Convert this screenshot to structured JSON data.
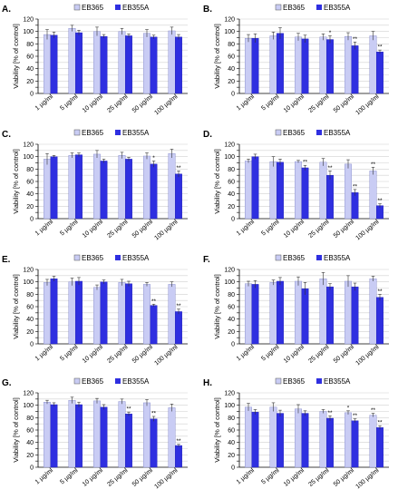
{
  "legend": {
    "series1": "EB365",
    "series2": "EB355A"
  },
  "colors": {
    "series1": "#c9ccf4",
    "series2": "#2f2fe0",
    "axis": "#000000",
    "grid": "#d0d0d0"
  },
  "chart_data": [
    {
      "type": "bar",
      "panel_label": "A.",
      "ylabel": "Viability [% of control]",
      "ylim": [
        0,
        120
      ],
      "yticks": [
        0,
        10,
        20,
        30,
        40,
        50,
        60,
        70,
        80,
        90,
        100,
        110,
        120
      ],
      "categories": [
        "1 µg/ml",
        "5 µg/ml",
        "10 µg/ml",
        "25 µg/ml",
        "50 µg/ml",
        "100 µg/ml"
      ],
      "series": [
        {
          "name": "EB365",
          "values": [
            95,
            105,
            100,
            100,
            97,
            101
          ],
          "errors": [
            8,
            5,
            7,
            5,
            6,
            6
          ],
          "sig": [
            "",
            "",
            "",
            "",
            "",
            ""
          ]
        },
        {
          "name": "EB355A",
          "values": [
            94,
            98,
            92,
            93,
            91,
            91
          ],
          "errors": [
            5,
            4,
            3,
            3,
            3,
            4
          ],
          "sig": [
            "",
            "",
            "",
            "",
            "",
            ""
          ]
        }
      ]
    },
    {
      "type": "bar",
      "panel_label": "B.",
      "ylabel": "Viability [% of control]",
      "ylim": [
        0,
        120
      ],
      "yticks": [
        0,
        10,
        20,
        30,
        40,
        50,
        60,
        70,
        80,
        90,
        100,
        110,
        120
      ],
      "categories": [
        "1 µg/ml",
        "5 µg/ml",
        "10 µg/ml",
        "25 µg/ml",
        "50 µg/ml",
        "100 µg/ml"
      ],
      "series": [
        {
          "name": "EB365",
          "values": [
            89,
            93,
            91,
            91,
            92,
            93
          ],
          "errors": [
            6,
            6,
            6,
            5,
            6,
            7
          ],
          "sig": [
            "",
            "",
            "",
            "",
            "",
            ""
          ]
        },
        {
          "name": "EB355A",
          "values": [
            89,
            97,
            88,
            87,
            77,
            67
          ],
          "errors": [
            7,
            9,
            6,
            6,
            6,
            3
          ],
          "sig": [
            "",
            "",
            "",
            "*",
            "**",
            "**"
          ]
        }
      ]
    },
    {
      "type": "bar",
      "panel_label": "C.",
      "ylabel": "Viability [% of control]",
      "ylim": [
        0,
        120
      ],
      "yticks": [
        0,
        10,
        20,
        30,
        40,
        50,
        60,
        70,
        80,
        90,
        100,
        110,
        120
      ],
      "categories": [
        "1 µg/ml",
        "5 µg/ml",
        "10 µg/ml",
        "25 µg/ml",
        "50 µg/ml",
        "100 µg/ml"
      ],
      "series": [
        {
          "name": "EB365",
          "values": [
            96,
            102,
            104,
            102,
            101,
            105
          ],
          "errors": [
            9,
            4,
            6,
            5,
            5,
            7
          ],
          "sig": [
            "",
            "",
            "",
            "",
            "",
            ""
          ]
        },
        {
          "name": "EB355A",
          "values": [
            100,
            103,
            93,
            96,
            88,
            72
          ],
          "errors": [
            2,
            3,
            3,
            3,
            5,
            5
          ],
          "sig": [
            "",
            "",
            "",
            "",
            "*",
            "**"
          ]
        }
      ]
    },
    {
      "type": "bar",
      "panel_label": "D.",
      "ylabel": "Viability [% of control]",
      "ylim": [
        0,
        120
      ],
      "yticks": [
        0,
        10,
        20,
        30,
        40,
        50,
        60,
        70,
        80,
        90,
        100,
        110,
        120
      ],
      "categories": [
        "1 µg/ml",
        "5 µg/ml",
        "10 µg/ml",
        "25 µg/ml",
        "50 µg/ml",
        "100 µg/ml"
      ],
      "series": [
        {
          "name": "EB365",
          "values": [
            93,
            92,
            92,
            91,
            88,
            77
          ],
          "errors": [
            3,
            8,
            2,
            6,
            7,
            6
          ],
          "sig": [
            "",
            "",
            "",
            "",
            "",
            "**"
          ]
        },
        {
          "name": "EB355A",
          "values": [
            100,
            91,
            82,
            70,
            42,
            21
          ],
          "errors": [
            4,
            5,
            4,
            7,
            5,
            3
          ],
          "sig": [
            "",
            "",
            "**",
            "**",
            "**",
            "**"
          ]
        }
      ]
    },
    {
      "type": "bar",
      "panel_label": "E.",
      "ylabel": "Viability [% of control]",
      "ylim": [
        0,
        120
      ],
      "yticks": [
        0,
        10,
        20,
        30,
        40,
        50,
        60,
        70,
        80,
        90,
        100,
        110,
        120
      ],
      "categories": [
        "1 µg/ml",
        "5 µg/ml",
        "10 µg/ml",
        "25 µg/ml",
        "50 µg/ml",
        "100 µg/ml"
      ],
      "series": [
        {
          "name": "EB365",
          "values": [
            99,
            100,
            91,
            99,
            96,
            96
          ],
          "errors": [
            5,
            6,
            4,
            5,
            3,
            4
          ],
          "sig": [
            "",
            "",
            "",
            "",
            "",
            ""
          ]
        },
        {
          "name": "EB355A",
          "values": [
            105,
            101,
            100,
            97,
            62,
            52
          ],
          "errors": [
            4,
            6,
            3,
            4,
            2,
            4
          ],
          "sig": [
            "",
            "",
            "",
            "",
            "**",
            "**"
          ]
        }
      ]
    },
    {
      "type": "bar",
      "panel_label": "F.",
      "ylabel": "Viability [% of control]",
      "ylim": [
        0,
        120
      ],
      "yticks": [
        0,
        10,
        20,
        30,
        40,
        50,
        60,
        70,
        80,
        90,
        100,
        110,
        120
      ],
      "categories": [
        "1 µg/ml",
        "5 µg/ml",
        "10 µg/ml",
        "25 µg/ml",
        "50 µg/ml",
        "100 µg/ml"
      ],
      "series": [
        {
          "name": "EB365",
          "values": [
            97,
            99,
            101,
            105,
            101,
            105
          ],
          "errors": [
            4,
            4,
            7,
            10,
            9,
            4
          ],
          "sig": [
            "",
            "",
            "",
            "",
            "",
            ""
          ]
        },
        {
          "name": "EB355A",
          "values": [
            96,
            101,
            89,
            92,
            92,
            75
          ],
          "errors": [
            6,
            6,
            10,
            5,
            6,
            5
          ],
          "sig": [
            "",
            "",
            "",
            "",
            "",
            "**"
          ]
        }
      ]
    },
    {
      "type": "bar",
      "panel_label": "G.",
      "ylabel": "Viability [% of control]",
      "ylim": [
        0,
        120
      ],
      "yticks": [
        0,
        10,
        20,
        30,
        40,
        50,
        60,
        70,
        80,
        90,
        100,
        110,
        120
      ],
      "categories": [
        "1 µg/ml",
        "5 µg/ml",
        "10 µg/ml",
        "25 µg/ml",
        "50 µg/ml",
        "100 µg/ml"
      ],
      "series": [
        {
          "name": "EB365",
          "values": [
            105,
            108,
            107,
            106,
            104,
            96
          ],
          "errors": [
            3,
            5,
            4,
            4,
            5,
            6
          ],
          "sig": [
            "",
            "",
            "",
            "",
            "",
            ""
          ]
        },
        {
          "name": "EB355A",
          "values": [
            101,
            101,
            97,
            86,
            78,
            35
          ],
          "errors": [
            3,
            4,
            4,
            3,
            4,
            2
          ],
          "sig": [
            "",
            "",
            "",
            "**",
            "**",
            "**"
          ]
        }
      ]
    },
    {
      "type": "bar",
      "panel_label": "H.",
      "ylabel": "Viability [% of control]",
      "ylim": [
        0,
        120
      ],
      "yticks": [
        0,
        10,
        20,
        30,
        40,
        50,
        60,
        70,
        80,
        90,
        100,
        110,
        120
      ],
      "categories": [
        "1 µg/ml",
        "5 µg/ml",
        "10 µg/ml",
        "25 µg/ml",
        "50 µg/ml",
        "100 µg/ml"
      ],
      "series": [
        {
          "name": "EB365",
          "values": [
            97,
            97,
            94,
            90,
            88,
            84
          ],
          "errors": [
            6,
            7,
            7,
            3,
            3,
            3
          ],
          "sig": [
            "",
            "",
            "",
            "",
            "*",
            "**"
          ]
        },
        {
          "name": "EB355A",
          "values": [
            89,
            87,
            87,
            79,
            75,
            64
          ],
          "errors": [
            4,
            5,
            4,
            4,
            3,
            3
          ],
          "sig": [
            "",
            "",
            "",
            "**",
            "**",
            "**"
          ]
        }
      ]
    }
  ]
}
